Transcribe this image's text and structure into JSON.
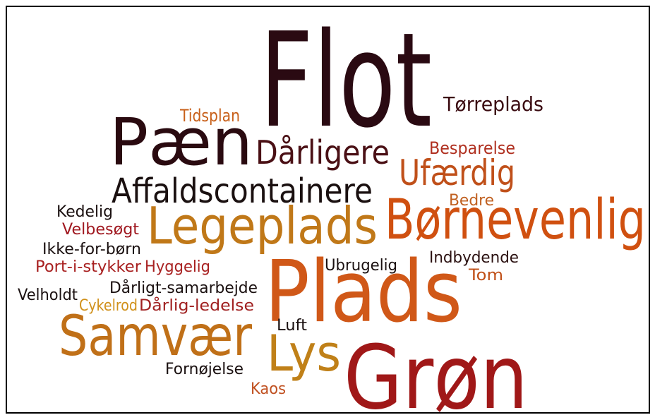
{
  "words": [
    {
      "text": "Flot",
      "color": "#2a0a12"
    },
    {
      "text": "Tørreplads",
      "color": "#3a0a10"
    },
    {
      "text": "Tidsplan",
      "color": "#c8601a"
    },
    {
      "text": "Pæn",
      "color": "#2a0a10"
    },
    {
      "text": "Dårligere",
      "color": "#4a1015"
    },
    {
      "text": "Besparelse",
      "color": "#b03020"
    },
    {
      "text": "Ufærdig",
      "color": "#c0501a"
    },
    {
      "text": "Affaldscontainere",
      "color": "#1a1010"
    },
    {
      "text": "Bedre",
      "color": "#c06020"
    },
    {
      "text": "Børnevenlig",
      "color": "#d05010"
    },
    {
      "text": "Kedelig",
      "color": "#1a1010"
    },
    {
      "text": "Velbesøgt",
      "color": "#a01820"
    },
    {
      "text": "Legeplads",
      "color": "#c07818"
    },
    {
      "text": "Ikke-for-børn",
      "color": "#1a1010"
    },
    {
      "text": "Indbydende",
      "color": "#2a1010"
    },
    {
      "text": "Port-i-stykker",
      "color": "#a82020"
    },
    {
      "text": "Hyggelig",
      "color": "#a82020"
    },
    {
      "text": "Ubrugelig",
      "color": "#1a1010"
    },
    {
      "text": "Tom",
      "color": "#c05018"
    },
    {
      "text": "Plads",
      "color": "#d05818"
    },
    {
      "text": "Velholdt",
      "color": "#1a1010"
    },
    {
      "text": "Dårligt-samarbejde",
      "color": "#1a1010"
    },
    {
      "text": "Cykelrod",
      "color": "#d0901a"
    },
    {
      "text": "Dårlig-ledelse",
      "color": "#a02020"
    },
    {
      "text": "Luft",
      "color": "#1a1010"
    },
    {
      "text": "Samvær",
      "color": "#c07018"
    },
    {
      "text": "Lys",
      "color": "#c08018"
    },
    {
      "text": "Grøn",
      "color": "#a01818"
    },
    {
      "text": "Fornøjelse",
      "color": "#1a1010"
    },
    {
      "text": "Kaos",
      "color": "#c05020"
    }
  ]
}
